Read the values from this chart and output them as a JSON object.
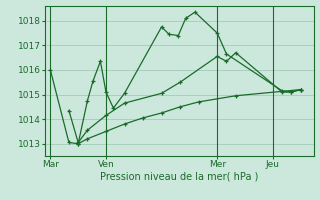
{
  "background_color": "#cce8dc",
  "grid_color": "#aacfbf",
  "line_color": "#1a6b2a",
  "title": "Pression niveau de la mer( hPa )",
  "yticks": [
    1013,
    1014,
    1015,
    1016,
    1017,
    1018
  ],
  "ylim": [
    1012.5,
    1018.6
  ],
  "xtick_labels": [
    "Mar",
    "Ven",
    "Mer",
    "Jeu"
  ],
  "xtick_positions": [
    0,
    3,
    9,
    12
  ],
  "xlim": [
    -0.3,
    14.2
  ],
  "series1_x": [
    0,
    1,
    1.5,
    2,
    2.3,
    2.7,
    3.0,
    3.4,
    4.0,
    6.0,
    6.4,
    6.9,
    7.3,
    7.8,
    9.0,
    9.5,
    12.5,
    13.0,
    13.5
  ],
  "series1_y": [
    1016.0,
    1013.05,
    1013.0,
    1014.75,
    1015.55,
    1016.35,
    1015.1,
    1014.45,
    1015.05,
    1017.75,
    1017.45,
    1017.4,
    1018.1,
    1018.35,
    1017.5,
    1016.65,
    1015.15,
    1015.1,
    1015.2
  ],
  "series2_x": [
    1,
    1.5,
    2.0,
    3.0,
    4.0,
    6.0,
    7.0,
    9.0,
    9.5,
    10.0,
    12.5,
    13.0,
    13.5
  ],
  "series2_y": [
    1014.35,
    1013.05,
    1013.55,
    1014.15,
    1014.65,
    1015.05,
    1015.5,
    1016.55,
    1016.35,
    1016.7,
    1015.1,
    1015.1,
    1015.2
  ],
  "series3_x": [
    1.5,
    2.0,
    3.0,
    4.0,
    5.0,
    6.0,
    7.0,
    8.0,
    10.0,
    13.5
  ],
  "series3_y": [
    1013.0,
    1013.2,
    1013.5,
    1013.8,
    1014.05,
    1014.25,
    1014.5,
    1014.7,
    1014.95,
    1015.2
  ],
  "vlines": [
    0,
    3,
    9,
    12
  ]
}
